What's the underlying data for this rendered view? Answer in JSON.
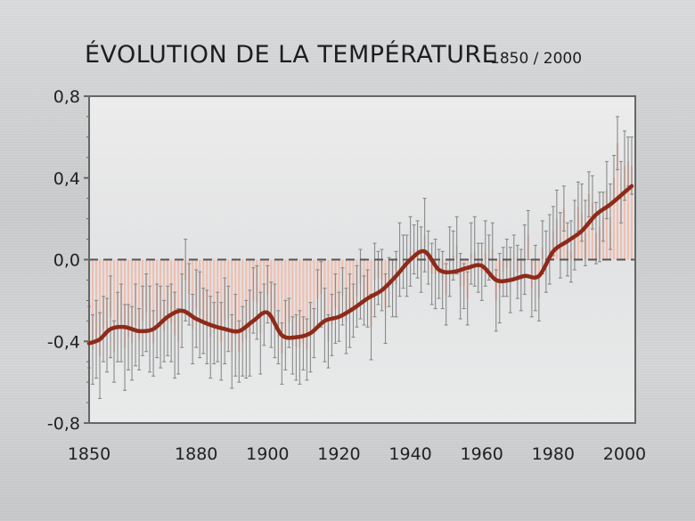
{
  "chart_data": {
    "type": "line",
    "title": "ÉVOLUTION DE LA TEMPÉRATURE",
    "subtitle": "1850 / 2000",
    "xlabel": "",
    "ylabel": "",
    "xlim": [
      1850,
      2003
    ],
    "ylim": [
      -0.8,
      0.8
    ],
    "x_ticks": [
      1850,
      1880,
      1900,
      1920,
      1940,
      1960,
      1980,
      2000
    ],
    "y_ticks": [
      {
        "value": 0.8,
        "label": "0,8"
      },
      {
        "value": 0.4,
        "label": "0,4"
      },
      {
        "value": 0.0,
        "label": "0,0"
      },
      {
        "value": -0.4,
        "label": "-0,4"
      },
      {
        "value": -0.8,
        "label": "-0,8"
      }
    ],
    "baseline": 0.0,
    "colors": {
      "smooth_line": "#8e2a1a",
      "bar": "#f0b9a8",
      "error_bar": "#8a8a8a",
      "axis": "#666666"
    },
    "series": [
      {
        "name": "smoothed",
        "x": [
          1850,
          1853,
          1856,
          1860,
          1864,
          1868,
          1872,
          1876,
          1880,
          1884,
          1888,
          1892,
          1896,
          1900,
          1904,
          1908,
          1912,
          1916,
          1920,
          1924,
          1928,
          1932,
          1936,
          1940,
          1944,
          1948,
          1952,
          1956,
          1960,
          1964,
          1968,
          1972,
          1976,
          1980,
          1984,
          1988,
          1992,
          1996,
          2000,
          2002
        ],
        "values": [
          -0.41,
          -0.39,
          -0.34,
          -0.33,
          -0.35,
          -0.34,
          -0.28,
          -0.25,
          -0.29,
          -0.32,
          -0.34,
          -0.35,
          -0.3,
          -0.26,
          -0.37,
          -0.38,
          -0.36,
          -0.3,
          -0.28,
          -0.24,
          -0.19,
          -0.15,
          -0.08,
          0.0,
          0.04,
          -0.05,
          -0.06,
          -0.04,
          -0.03,
          -0.1,
          -0.1,
          -0.08,
          -0.08,
          0.04,
          0.09,
          0.14,
          0.22,
          0.27,
          0.33,
          0.36
        ]
      },
      {
        "name": "annual",
        "x": [
          1850,
          1851,
          1852,
          1853,
          1854,
          1855,
          1856,
          1857,
          1858,
          1859,
          1860,
          1861,
          1862,
          1863,
          1864,
          1865,
          1866,
          1867,
          1868,
          1869,
          1870,
          1871,
          1872,
          1873,
          1874,
          1875,
          1876,
          1877,
          1878,
          1879,
          1880,
          1881,
          1882,
          1883,
          1884,
          1885,
          1886,
          1887,
          1888,
          1889,
          1890,
          1891,
          1892,
          1893,
          1894,
          1895,
          1896,
          1897,
          1898,
          1899,
          1900,
          1901,
          1902,
          1903,
          1904,
          1905,
          1906,
          1907,
          1908,
          1909,
          1910,
          1911,
          1912,
          1913,
          1914,
          1915,
          1916,
          1917,
          1918,
          1919,
          1920,
          1921,
          1922,
          1923,
          1924,
          1925,
          1926,
          1927,
          1928,
          1929,
          1930,
          1931,
          1932,
          1933,
          1934,
          1935,
          1936,
          1937,
          1938,
          1939,
          1940,
          1941,
          1942,
          1943,
          1944,
          1945,
          1946,
          1947,
          1948,
          1949,
          1950,
          1951,
          1952,
          1953,
          1954,
          1955,
          1956,
          1957,
          1958,
          1959,
          1960,
          1961,
          1962,
          1963,
          1964,
          1965,
          1966,
          1967,
          1968,
          1969,
          1970,
          1971,
          1972,
          1973,
          1974,
          1975,
          1976,
          1977,
          1978,
          1979,
          1980,
          1981,
          1982,
          1983,
          1984,
          1985,
          1986,
          1987,
          1988,
          1989,
          1990,
          1991,
          1992,
          1993,
          1994,
          1995,
          1996,
          1997,
          1998,
          1999,
          2000,
          2001,
          2002
        ],
        "values": [
          -0.38,
          -0.44,
          -0.39,
          -0.47,
          -0.34,
          -0.37,
          -0.28,
          -0.45,
          -0.33,
          -0.31,
          -0.43,
          -0.38,
          -0.41,
          -0.32,
          -0.39,
          -0.3,
          -0.26,
          -0.34,
          -0.41,
          -0.3,
          -0.33,
          -0.35,
          -0.3,
          -0.31,
          -0.37,
          -0.4,
          -0.25,
          -0.1,
          -0.17,
          -0.34,
          -0.24,
          -0.27,
          -0.3,
          -0.33,
          -0.38,
          -0.36,
          -0.33,
          -0.4,
          -0.3,
          -0.29,
          -0.45,
          -0.37,
          -0.45,
          -0.4,
          -0.39,
          -0.36,
          -0.2,
          -0.21,
          -0.36,
          -0.27,
          -0.17,
          -0.27,
          -0.3,
          -0.38,
          -0.46,
          -0.37,
          -0.31,
          -0.42,
          -0.43,
          -0.43,
          -0.41,
          -0.44,
          -0.38,
          -0.36,
          -0.19,
          -0.17,
          -0.32,
          -0.4,
          -0.32,
          -0.24,
          -0.28,
          -0.18,
          -0.3,
          -0.25,
          -0.25,
          -0.18,
          -0.12,
          -0.2,
          -0.19,
          -0.33,
          -0.1,
          -0.09,
          -0.1,
          -0.24,
          -0.11,
          -0.14,
          -0.12,
          0.0,
          -0.01,
          -0.03,
          0.04,
          0.05,
          0.05,
          0.0,
          0.12,
          0.01,
          -0.07,
          -0.07,
          -0.07,
          -0.1,
          -0.17,
          -0.01,
          0.02,
          0.07,
          -0.13,
          -0.13,
          -0.19,
          0.03,
          0.04,
          -0.04,
          -0.06,
          0.03,
          0.01,
          0.05,
          -0.2,
          -0.14,
          -0.06,
          -0.04,
          -0.1,
          0.01,
          -0.06,
          -0.1,
          0.0,
          0.12,
          -0.14,
          -0.09,
          -0.19,
          0.06,
          -0.01,
          0.05,
          0.14,
          0.2,
          0.07,
          0.25,
          0.05,
          0.04,
          0.12,
          0.26,
          0.23,
          0.13,
          0.32,
          0.28,
          0.13,
          0.16,
          0.21,
          0.34,
          0.21,
          0.4,
          0.57,
          0.33,
          0.46,
          0.48,
          0.46
        ]
      }
    ]
  }
}
